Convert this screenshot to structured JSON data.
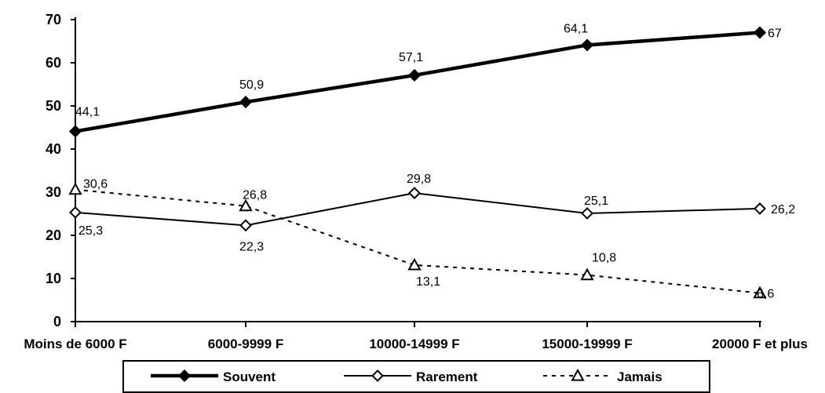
{
  "chart_data": {
    "type": "line",
    "categories": [
      "Moins de 6000 F",
      "6000-9999 F",
      "10000-14999 F",
      "15000-19999 F",
      "20000 F et plus"
    ],
    "ylim": [
      0,
      70
    ],
    "yticks": [
      0,
      10,
      20,
      30,
      40,
      50,
      60,
      70
    ],
    "grid": false,
    "legend_position": "bottom",
    "series": [
      {
        "name": "Souvent",
        "values": [
          44.1,
          50.9,
          57.1,
          64.1,
          67
        ],
        "labels": [
          "44,1",
          "50,9",
          "57,1",
          "64,1",
          "67"
        ],
        "marker": "filled-diamond",
        "line": "thick-solid",
        "color": "#000000"
      },
      {
        "name": "Rarement",
        "values": [
          25.3,
          22.3,
          29.8,
          25.1,
          26.2
        ],
        "labels": [
          "25,3",
          "22,3",
          "29,8",
          "25,1",
          "26,2"
        ],
        "marker": "open-diamond",
        "line": "solid",
        "color": "#000000"
      },
      {
        "name": "Jamais",
        "values": [
          30.6,
          26.8,
          13.1,
          10.8,
          6.6
        ],
        "labels": [
          "30,6",
          "26,8",
          "13,1",
          "10,8",
          "6,6"
        ],
        "marker": "open-triangle",
        "line": "dashed",
        "color": "#000000"
      }
    ]
  }
}
